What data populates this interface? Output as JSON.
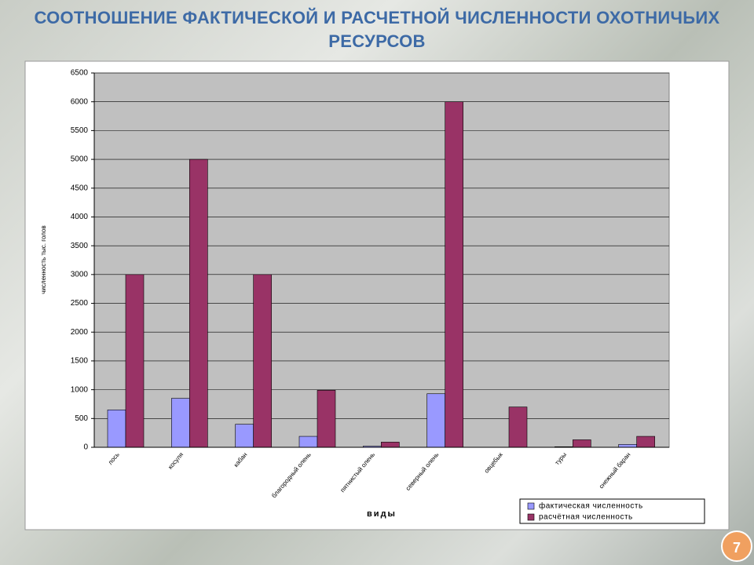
{
  "chart_data": {
    "type": "bar",
    "title": "СООТНОШЕНИЕ ФАКТИЧЕСКОЙ И РАСЧЕТНОЙ ЧИСЛЕННОСТИ ОХОТНИЧЬИХ РЕСУРСОВ",
    "y_label": "численность тыс. голов",
    "x_label": "виды",
    "categories": [
      "лось",
      "косуля",
      "кабан",
      "благородный олень",
      "пятнистый олень",
      "северный олень",
      "овцебык",
      "туры",
      "снежный баран"
    ],
    "series": [
      {
        "name": "фактическая численность",
        "color": "#9999ff",
        "values": [
          650,
          850,
          400,
          190,
          20,
          930,
          0,
          10,
          50
        ]
      },
      {
        "name": "расчётная численность",
        "color": "#993366",
        "values": [
          3000,
          5000,
          3000,
          990,
          90,
          6000,
          700,
          130,
          190
        ]
      }
    ],
    "ylim": [
      0,
      6500
    ],
    "yticks": [
      0,
      500,
      1000,
      1500,
      2000,
      2500,
      3000,
      3500,
      4000,
      4500,
      5000,
      5500,
      6000,
      6500
    ],
    "grid": true
  },
  "page_number": "7"
}
